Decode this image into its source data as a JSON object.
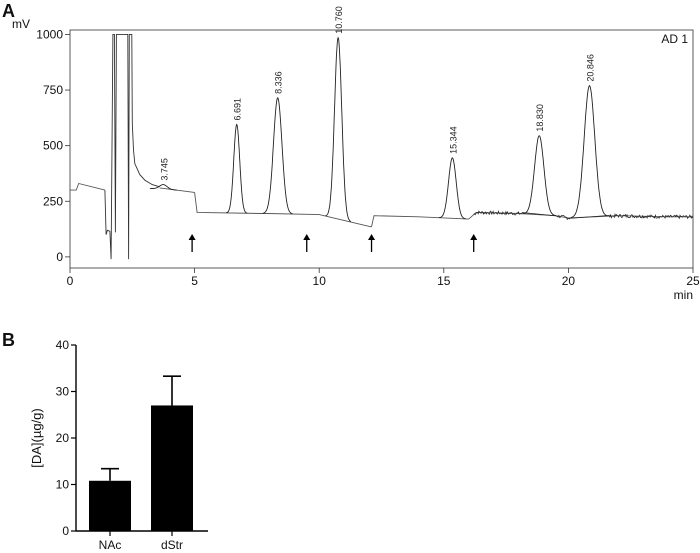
{
  "panels": {
    "a": {
      "letter": "A"
    },
    "b": {
      "letter": "B"
    }
  },
  "chart_data": [
    {
      "type": "line",
      "panel": "A",
      "title": "",
      "ylabel": "mV",
      "xlabel": "min",
      "channel_label": "AD 1",
      "xlim": [
        0,
        25
      ],
      "ylim": [
        -50,
        1020
      ],
      "x_ticks": [
        0,
        5,
        10,
        15,
        20,
        25
      ],
      "y_ticks": [
        0,
        250,
        500,
        750,
        1000
      ],
      "baseline_segments": [
        {
          "x": [
            0,
            0.25,
            0.35,
            1.4
          ],
          "y": [
            300,
            300,
            330,
            300
          ]
        },
        {
          "x": [
            3.6,
            5.0
          ],
          "y": [
            310,
            290
          ]
        },
        {
          "x": [
            5.0,
            5.1,
            7.7,
            7.9,
            10.0,
            12.1
          ],
          "y": [
            290,
            200,
            195,
            195,
            190,
            135
          ]
        },
        {
          "x": [
            12.1,
            12.2,
            14.0,
            16.0
          ],
          "y": [
            135,
            185,
            180,
            170
          ]
        },
        {
          "x": [
            16.0,
            16.3,
            18.0,
            19.5,
            20.0,
            22.0,
            24.0,
            25.0
          ],
          "y": [
            170,
            200,
            195,
            185,
            175,
            185,
            180,
            180
          ]
        }
      ],
      "noise_region": {
        "x_start": 16.2,
        "x_end": 25.0,
        "amplitude_mV": 8
      },
      "peaks": [
        {
          "rt": 3.745,
          "label": "3.745",
          "height_mV": 325,
          "width_min": 0.18
        },
        {
          "rt": 6.691,
          "label": "6.691",
          "height_mV": 595,
          "width_min": 0.14
        },
        {
          "rt": 8.336,
          "label": "8.336",
          "height_mV": 715,
          "width_min": 0.2
        },
        {
          "rt": 10.76,
          "label": "10.760",
          "height_mV": 985,
          "width_min": 0.17
        },
        {
          "rt": 15.344,
          "label": "15.344",
          "height_mV": 445,
          "width_min": 0.18
        },
        {
          "rt": 18.83,
          "label": "18.830",
          "height_mV": 545,
          "width_min": 0.22
        },
        {
          "rt": 20.846,
          "label": "20.846",
          "height_mV": 770,
          "width_min": 0.25
        }
      ],
      "solvent_front": {
        "x": [
          1.4,
          1.45,
          1.5,
          1.6,
          1.65,
          1.72,
          1.78,
          1.82,
          1.86,
          1.95,
          2.0,
          2.1,
          2.2,
          2.3,
          2.32,
          2.35,
          2.38,
          2.4,
          2.45,
          2.48,
          2.5,
          2.55,
          2.6,
          2.8,
          3.0,
          3.3,
          3.6
        ],
        "y": [
          300,
          100,
          120,
          115,
          -10,
          1000,
          1000,
          110,
          1000,
          1000,
          1000,
          1000,
          1000,
          1000,
          1000,
          -10,
          1000,
          1000,
          1000,
          1000,
          600,
          480,
          420,
          370,
          345,
          325,
          315
        ]
      },
      "injection_markers": [
        4.9,
        9.5,
        12.1,
        16.2
      ]
    },
    {
      "type": "bar",
      "panel": "B",
      "ylabel": "[DA](µg/g)",
      "categories": [
        "NAc",
        "dStr"
      ],
      "values": [
        10.8,
        27.0
      ],
      "errors": [
        2.6,
        6.3
      ],
      "ylim": [
        0,
        40
      ],
      "y_ticks": [
        0,
        10,
        20,
        30,
        40
      ],
      "bar_color": "#000000"
    }
  ]
}
